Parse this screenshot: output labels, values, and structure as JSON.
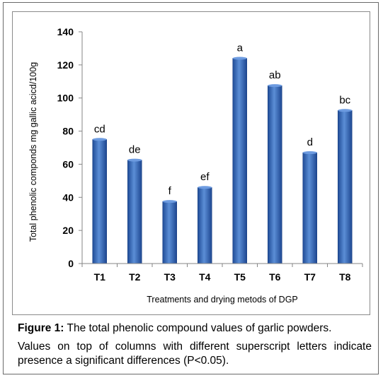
{
  "figure": {
    "caption_label": "Figure 1:",
    "caption_text": " The total phenolic compound values of garlic powders.",
    "caption_note": "Values on top of columns with different superscript letters indicate presence a significant differences (P<0.05)."
  },
  "chart_data": {
    "type": "bar",
    "title": "",
    "xlabel": "Treatments and drying metods of DGP",
    "ylabel": "Total phenolic componds mg gallic acicd/100g",
    "categories": [
      "T1",
      "T2",
      "T3",
      "T4",
      "T5",
      "T6",
      "T7",
      "T8"
    ],
    "values": [
      75,
      62.5,
      37.5,
      46,
      124,
      107.5,
      67,
      92.5
    ],
    "significance_letters": [
      "cd",
      "de",
      "f",
      "ef",
      "a",
      "ab",
      "d",
      "bc"
    ],
    "ylim": [
      0,
      140
    ],
    "yticks": [
      0,
      20,
      40,
      60,
      80,
      100,
      120,
      140
    ],
    "grid": false,
    "legend": "none",
    "bar_color": "#3f6fbd"
  }
}
